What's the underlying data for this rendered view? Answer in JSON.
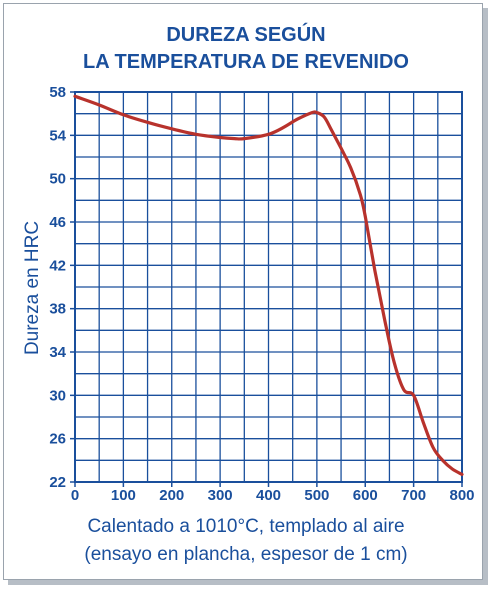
{
  "chart_data": {
    "type": "line",
    "title_lines": [
      "DUREZA SEGÚN",
      "LA TEMPERATURA DE REVENIDO"
    ],
    "ylabel": "Dureza en HRC",
    "xlabel_lines": [
      "Calentado a 1010°C, templado al aire",
      "(ensayo en plancha, espesor de 1 cm)"
    ],
    "xlim": [
      0,
      800
    ],
    "ylim": [
      22,
      58
    ],
    "x_ticks": [
      0,
      100,
      200,
      300,
      400,
      500,
      600,
      700,
      800
    ],
    "y_ticks": [
      22,
      26,
      30,
      34,
      38,
      42,
      46,
      50,
      54,
      58
    ],
    "grid": true,
    "series": [
      {
        "color": "#b8322c",
        "x": [
          0,
          50,
          100,
          150,
          200,
          250,
          300,
          330,
          350,
          400,
          430,
          460,
          490,
          500,
          515,
          530,
          550,
          570,
          590,
          600,
          620,
          640,
          660,
          680,
          700,
          720,
          740,
          760,
          780,
          800
        ],
        "y": [
          57.6,
          56.8,
          55.9,
          55.2,
          54.6,
          54.1,
          53.8,
          53.7,
          53.7,
          54.1,
          54.7,
          55.5,
          56.1,
          56.1,
          55.7,
          54.5,
          52.8,
          51.0,
          48.5,
          46.5,
          41.5,
          37.0,
          33.0,
          30.5,
          30.0,
          27.5,
          25.2,
          24.0,
          23.2,
          22.7
        ]
      }
    ]
  }
}
